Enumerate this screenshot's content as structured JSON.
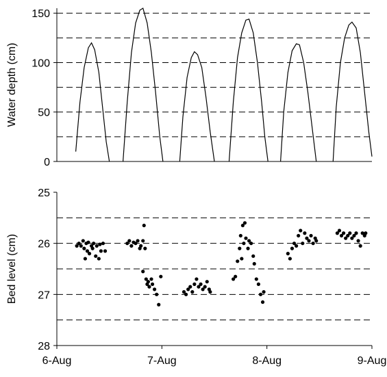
{
  "chart_data": [
    {
      "type": "line",
      "y_label": "Water depth (cm)",
      "color": "#000000",
      "xlim": [
        0,
        3
      ],
      "ylim": [
        0,
        155
      ],
      "yticks": [
        0,
        50,
        100,
        150
      ],
      "grid_lines": [
        25,
        50,
        75,
        100,
        125,
        150
      ],
      "x": [
        0.18,
        0.22,
        0.26,
        0.3,
        0.33,
        0.36,
        0.4,
        0.44,
        0.47,
        0.5,
        0.56,
        0.63,
        0.67,
        0.71,
        0.75,
        0.79,
        0.82,
        0.86,
        0.9,
        0.94,
        0.98,
        1.01,
        1.09,
        1.17,
        1.2,
        1.24,
        1.28,
        1.31,
        1.34,
        1.38,
        1.42,
        1.46,
        1.5,
        1.57,
        1.64,
        1.68,
        1.72,
        1.76,
        1.8,
        1.83,
        1.87,
        1.91,
        1.95,
        1.98,
        2.01,
        2.07,
        2.13,
        2.16,
        2.2,
        2.24,
        2.28,
        2.31,
        2.35,
        2.39,
        2.43,
        2.47,
        2.55,
        2.63,
        2.66,
        2.7,
        2.74,
        2.78,
        2.81,
        2.85,
        2.89,
        2.93,
        2.97,
        3.0
      ],
      "values": [
        10,
        60,
        95,
        115,
        120,
        113,
        90,
        50,
        20,
        0,
        null,
        0,
        60,
        110,
        140,
        153,
        155,
        140,
        110,
        70,
        25,
        0,
        null,
        0,
        45,
        85,
        105,
        111,
        108,
        95,
        65,
        30,
        0,
        null,
        0,
        60,
        105,
        130,
        143,
        144,
        130,
        100,
        60,
        25,
        0,
        null,
        0,
        50,
        90,
        112,
        119,
        118,
        100,
        70,
        35,
        0,
        null,
        0,
        55,
        100,
        125,
        138,
        141,
        135,
        110,
        70,
        30,
        5
      ]
    },
    {
      "type": "scatter",
      "y_label": "Bed level (cm)",
      "color": "#000000",
      "xlim": [
        0,
        3
      ],
      "ylim": [
        28,
        25
      ],
      "yticks": [
        25,
        26,
        27,
        28
      ],
      "grid_lines": [
        25.5,
        26,
        26.5,
        27,
        27.5
      ],
      "xticks": [
        {
          "value": 0,
          "label": "6-Aug"
        },
        {
          "value": 1,
          "label": "7-Aug"
        },
        {
          "value": 2,
          "label": "8-Aug"
        },
        {
          "value": 3,
          "label": "9-Aug"
        }
      ],
      "x": [
        0.19,
        0.21,
        0.23,
        0.25,
        0.26,
        0.27,
        0.28,
        0.29,
        0.3,
        0.31,
        0.33,
        0.34,
        0.35,
        0.37,
        0.38,
        0.4,
        0.41,
        0.42,
        0.44,
        0.46,
        0.67,
        0.69,
        0.71,
        0.73,
        0.75,
        0.77,
        0.79,
        0.8,
        0.82,
        0.84,
        0.83,
        0.82,
        0.85,
        0.86,
        0.87,
        0.88,
        0.9,
        0.91,
        0.93,
        0.95,
        0.97,
        0.99,
        1.21,
        1.23,
        1.25,
        1.27,
        1.29,
        1.31,
        1.33,
        1.35,
        1.37,
        1.39,
        1.41,
        1.43,
        1.45,
        1.46,
        1.68,
        1.7,
        1.72,
        1.74,
        1.75,
        1.76,
        1.77,
        1.78,
        1.79,
        1.8,
        1.82,
        1.83,
        1.85,
        1.87,
        1.88,
        1.9,
        1.92,
        1.94,
        1.96,
        1.97,
        2.2,
        2.22,
        2.24,
        2.26,
        2.28,
        2.3,
        2.32,
        2.34,
        2.36,
        2.38,
        2.4,
        2.42,
        2.44,
        2.46,
        2.47,
        2.67,
        2.69,
        2.71,
        2.73,
        2.75,
        2.77,
        2.79,
        2.81,
        2.83,
        2.85,
        2.87,
        2.89,
        2.91,
        2.93,
        2.94
      ],
      "values": [
        26.05,
        26.0,
        26.05,
        25.95,
        26.1,
        26.3,
        26.0,
        26.15,
        25.98,
        26.2,
        26.05,
        26.1,
        26.0,
        26.25,
        26.05,
        26.3,
        26.02,
        26.15,
        26.0,
        26.15,
        26.0,
        25.95,
        26.05,
        25.98,
        26.0,
        25.95,
        26.1,
        26.05,
        25.95,
        26.1,
        25.65,
        26.55,
        26.7,
        26.8,
        26.75,
        26.85,
        26.7,
        26.8,
        26.9,
        27.0,
        27.2,
        26.65,
        26.95,
        27.0,
        26.9,
        26.85,
        26.95,
        26.8,
        26.7,
        26.85,
        26.8,
        26.9,
        26.85,
        26.75,
        26.9,
        26.95,
        26.7,
        26.65,
        26.35,
        26.1,
        25.85,
        26.3,
        25.65,
        26.0,
        25.6,
        25.9,
        26.1,
        25.95,
        26.0,
        26.25,
        26.4,
        26.7,
        26.8,
        27.0,
        27.15,
        26.95,
        26.2,
        26.3,
        26.1,
        26.0,
        26.05,
        25.85,
        25.75,
        26.0,
        25.8,
        25.9,
        25.95,
        25.85,
        26.0,
        25.9,
        25.95,
        25.8,
        25.75,
        25.85,
        25.8,
        25.9,
        25.85,
        25.8,
        25.9,
        25.85,
        25.8,
        25.95,
        26.05,
        25.8,
        25.85,
        25.8
      ]
    }
  ]
}
